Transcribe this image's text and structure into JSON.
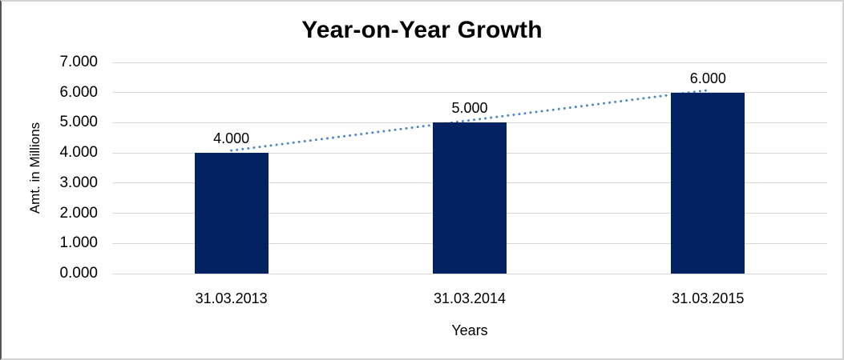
{
  "chart_data": {
    "type": "bar",
    "title": "Year-on-Year Growth",
    "xlabel": "Years",
    "ylabel": "Amt. in Millions",
    "categories": [
      "31.03.2013",
      "31.03.2014",
      "31.03.2015"
    ],
    "values": [
      4000,
      5000,
      6000
    ],
    "data_labels": [
      "4.000",
      "5.000",
      "6.000"
    ],
    "y_ticks": [
      "0.000",
      "1.000",
      "2.000",
      "3.000",
      "4.000",
      "5.000",
      "6.000",
      "7.000"
    ],
    "ylim": [
      0,
      7000
    ],
    "grid": "horizontal",
    "legend": "none",
    "trendline": {
      "type": "linear",
      "style": "dotted",
      "from_value": 4000,
      "to_value": 6000
    },
    "colors": {
      "bar": "#022262",
      "trendline": "#4a86c8",
      "gridline": "#d9d9d9",
      "text": "#000000",
      "frame_border": "#d3d3d3",
      "frame_border_left": "#555555",
      "background": "#ffffff"
    }
  }
}
